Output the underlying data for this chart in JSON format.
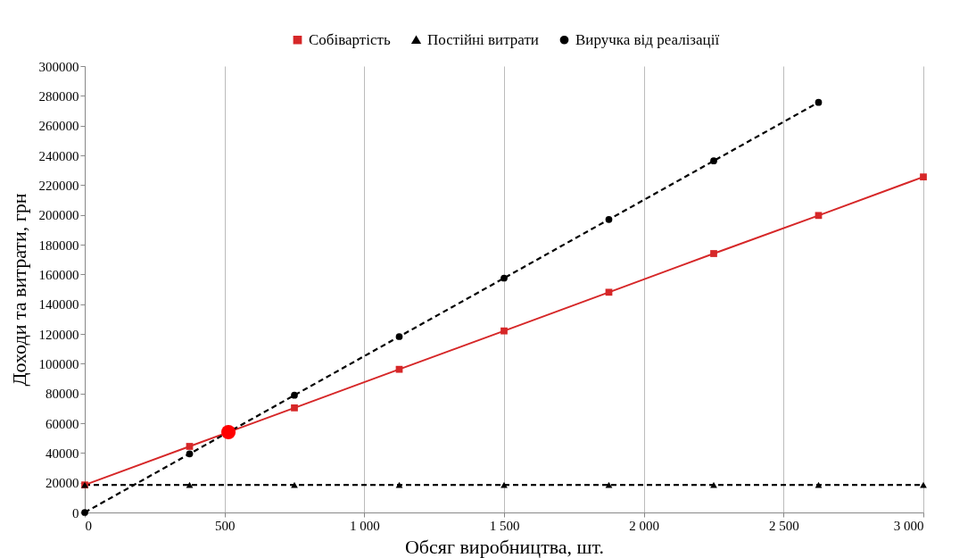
{
  "chart_data": {
    "type": "line",
    "xlabel": "Обсяг виробництва, шт.",
    "ylabel": "Доходи та витрати, грн",
    "xlim": [
      0,
      3000
    ],
    "ylim": [
      0,
      300000
    ],
    "xticks": [
      0,
      500,
      {
        "value": 1000,
        "label": "1 000"
      },
      {
        "value": 1500,
        "label": "1 500"
      },
      {
        "value": 2000,
        "label": "2 000"
      },
      {
        "value": 2500,
        "label": "2 500"
      },
      {
        "value": 3000,
        "label": "3 000"
      }
    ],
    "yticks": [
      0,
      20000,
      40000,
      60000,
      80000,
      100000,
      120000,
      140000,
      160000,
      180000,
      200000,
      220000,
      240000,
      260000,
      280000,
      300000
    ],
    "grid": "x",
    "legend": "top",
    "series": [
      {
        "name": "Собівартість",
        "color": "#d62728",
        "marker": "square",
        "line_style": "solid",
        "x": [
          0,
          375,
          750,
          1125,
          1500,
          1875,
          2250,
          2625,
          3000
        ],
        "values": [
          18500,
          44400,
          70300,
          96200,
          122000,
          148000,
          174000,
          199600,
          225500
        ]
      },
      {
        "name": "Постійні витрати",
        "color": "#000000",
        "marker": "triangle",
        "line_style": "dashed",
        "x": [
          0,
          375,
          750,
          1125,
          1500,
          1875,
          2250,
          2625,
          3000
        ],
        "values": [
          18500,
          18500,
          18500,
          18500,
          18500,
          18500,
          18500,
          18500,
          18500
        ]
      },
      {
        "name": "Виручка від реалізації",
        "color": "#000000",
        "marker": "circle",
        "line_style": "dashed",
        "x": [
          0,
          375,
          750,
          1125,
          1500,
          1875,
          2250,
          2625
        ],
        "values": [
          0,
          39400,
          78800,
          118200,
          157500,
          196900,
          236300,
          275600
        ]
      },
      {
        "type": "scatter",
        "color": "#ff0000",
        "marker": "circle",
        "x": [
          514
        ],
        "values": [
          54000
        ]
      }
    ]
  }
}
